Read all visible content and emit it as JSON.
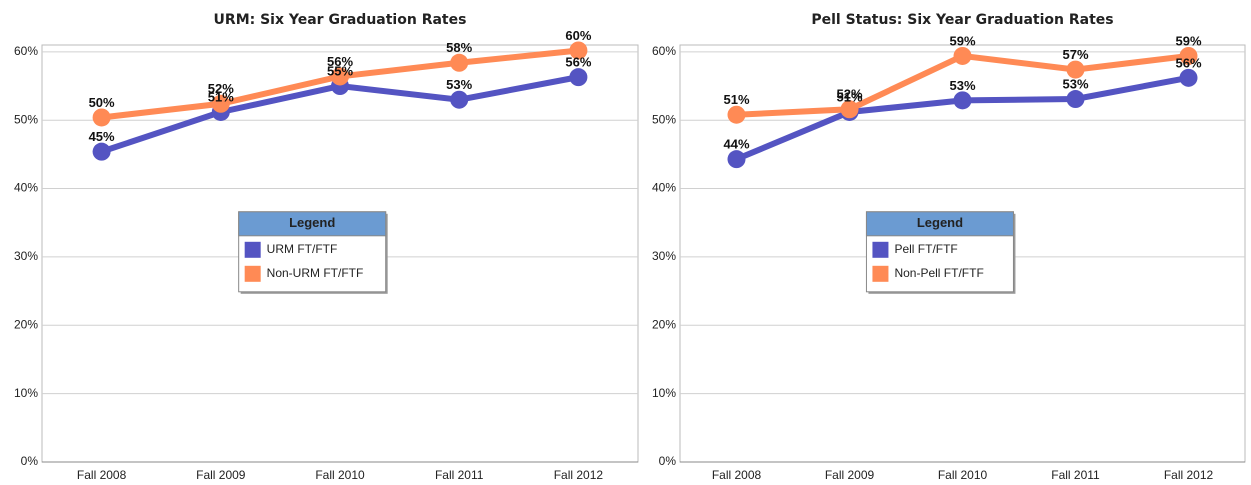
{
  "chart_data": [
    {
      "type": "line",
      "title": "URM: Six Year Graduation Rates",
      "categories": [
        "Fall 2008",
        "Fall 2009",
        "Fall 2010",
        "Fall 2011",
        "Fall 2012"
      ],
      "series": [
        {
          "name": "URM FT/FTF",
          "color": "#5454c2",
          "values": [
            45.4,
            51.2,
            55.0,
            53.0,
            56.3
          ],
          "value_labels": [
            "45%",
            "51%",
            "55%",
            "53%",
            "56%"
          ]
        },
        {
          "name": "Non-URM FT/FTF",
          "color": "#ff8a55",
          "values": [
            50.4,
            52.4,
            56.4,
            58.4,
            60.2
          ],
          "value_labels": [
            "50%",
            "52%",
            "56%",
            "58%",
            "60%"
          ]
        }
      ],
      "ylim": [
        0,
        61
      ],
      "yticks": [
        {
          "value": 0,
          "label": "0%"
        },
        {
          "value": 10,
          "label": "10%"
        },
        {
          "value": 20,
          "label": "20%"
        },
        {
          "value": 30,
          "label": "30%"
        },
        {
          "value": 40,
          "label": "40%"
        },
        {
          "value": 50,
          "label": "50%"
        },
        {
          "value": 60,
          "label": "60%"
        }
      ],
      "grid": true,
      "legend": "center",
      "legend_title": "Legend"
    },
    {
      "type": "line",
      "title": "Pell Status: Six Year Graduation Rates",
      "categories": [
        "Fall 2008",
        "Fall 2009",
        "Fall 2010",
        "Fall 2011",
        "Fall 2012"
      ],
      "series": [
        {
          "name": "Pell FT/FTF",
          "color": "#5454c2",
          "values": [
            44.3,
            51.2,
            52.9,
            53.1,
            56.2
          ],
          "value_labels": [
            "44%",
            "51%",
            "53%",
            "53%",
            "56%"
          ]
        },
        {
          "name": "Non-Pell FT/FTF",
          "color": "#ff8a55",
          "values": [
            50.8,
            51.6,
            59.4,
            57.4,
            59.4
          ],
          "value_labels": [
            "51%",
            "52%",
            "59%",
            "57%",
            "59%"
          ]
        }
      ],
      "ylim": [
        0,
        61
      ],
      "yticks": [
        {
          "value": 0,
          "label": "0%"
        },
        {
          "value": 10,
          "label": "10%"
        },
        {
          "value": 20,
          "label": "20%"
        },
        {
          "value": 30,
          "label": "30%"
        },
        {
          "value": 40,
          "label": "40%"
        },
        {
          "value": 50,
          "label": "50%"
        },
        {
          "value": 60,
          "label": "60%"
        }
      ],
      "grid": true,
      "legend": "center",
      "legend_title": "Legend"
    }
  ]
}
